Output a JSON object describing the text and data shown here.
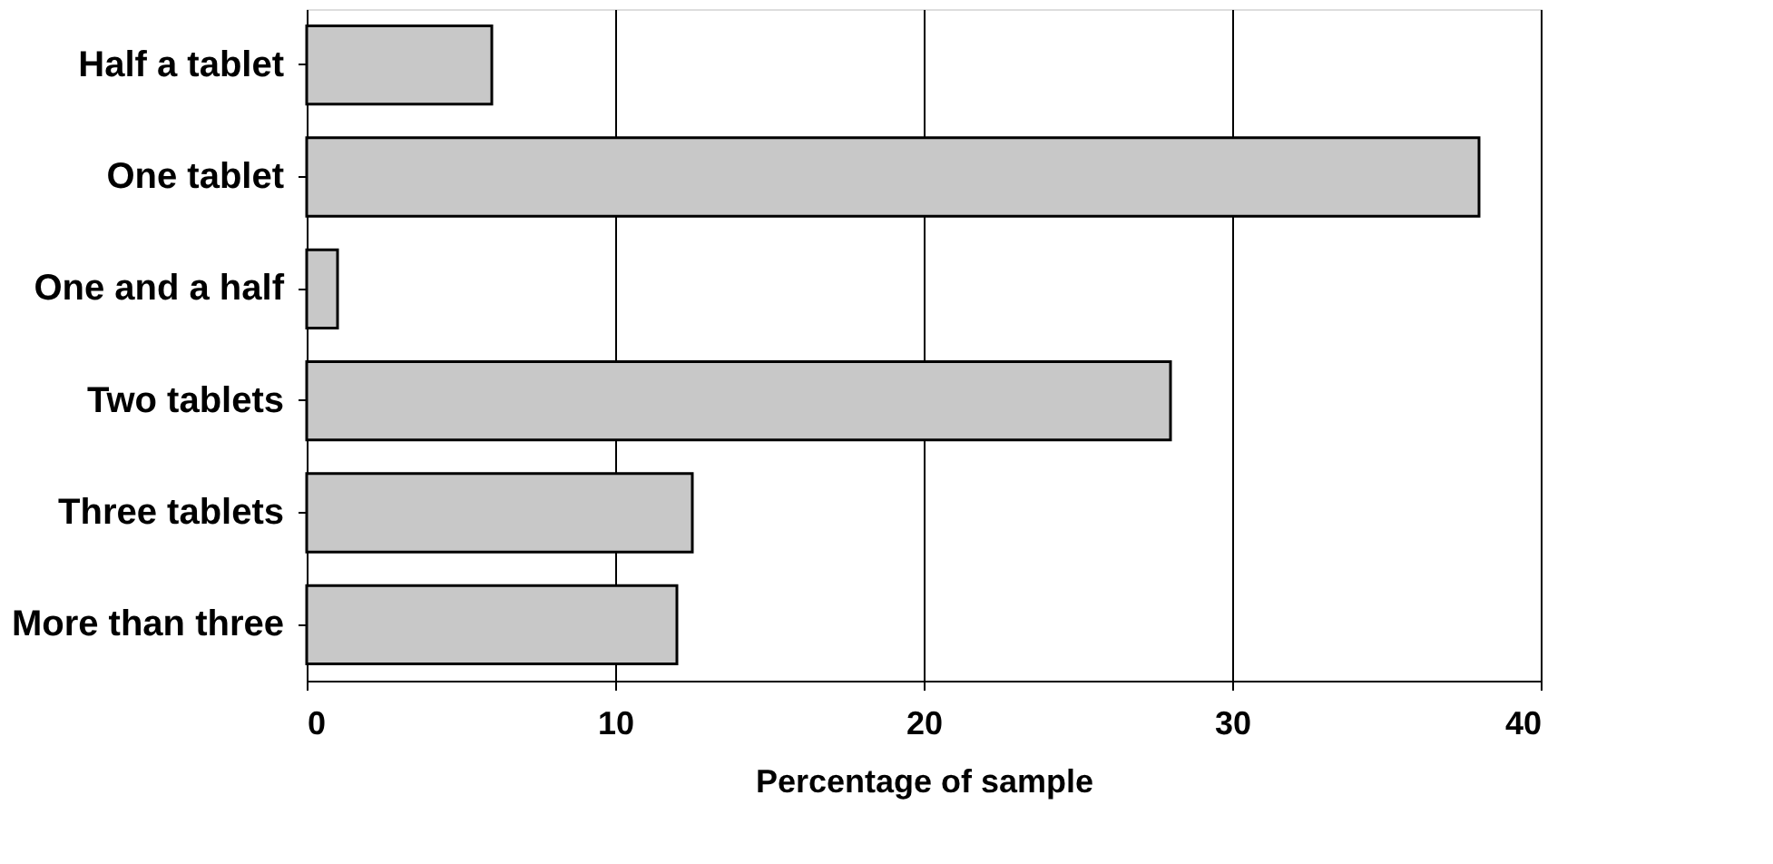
{
  "chart_data": {
    "type": "bar",
    "orientation": "horizontal",
    "xlabel": "Percentage of sample",
    "categories": [
      "Half a tablet",
      "One tablet",
      "One and a half",
      "Two tablets",
      "Three tablets",
      "More than three"
    ],
    "values": [
      6,
      38,
      1,
      28,
      12.5,
      12
    ],
    "color": "#c8c8c8",
    "xlim": [
      0,
      40
    ],
    "xticks": [
      0,
      10,
      20,
      30,
      40
    ],
    "grid": "x"
  }
}
